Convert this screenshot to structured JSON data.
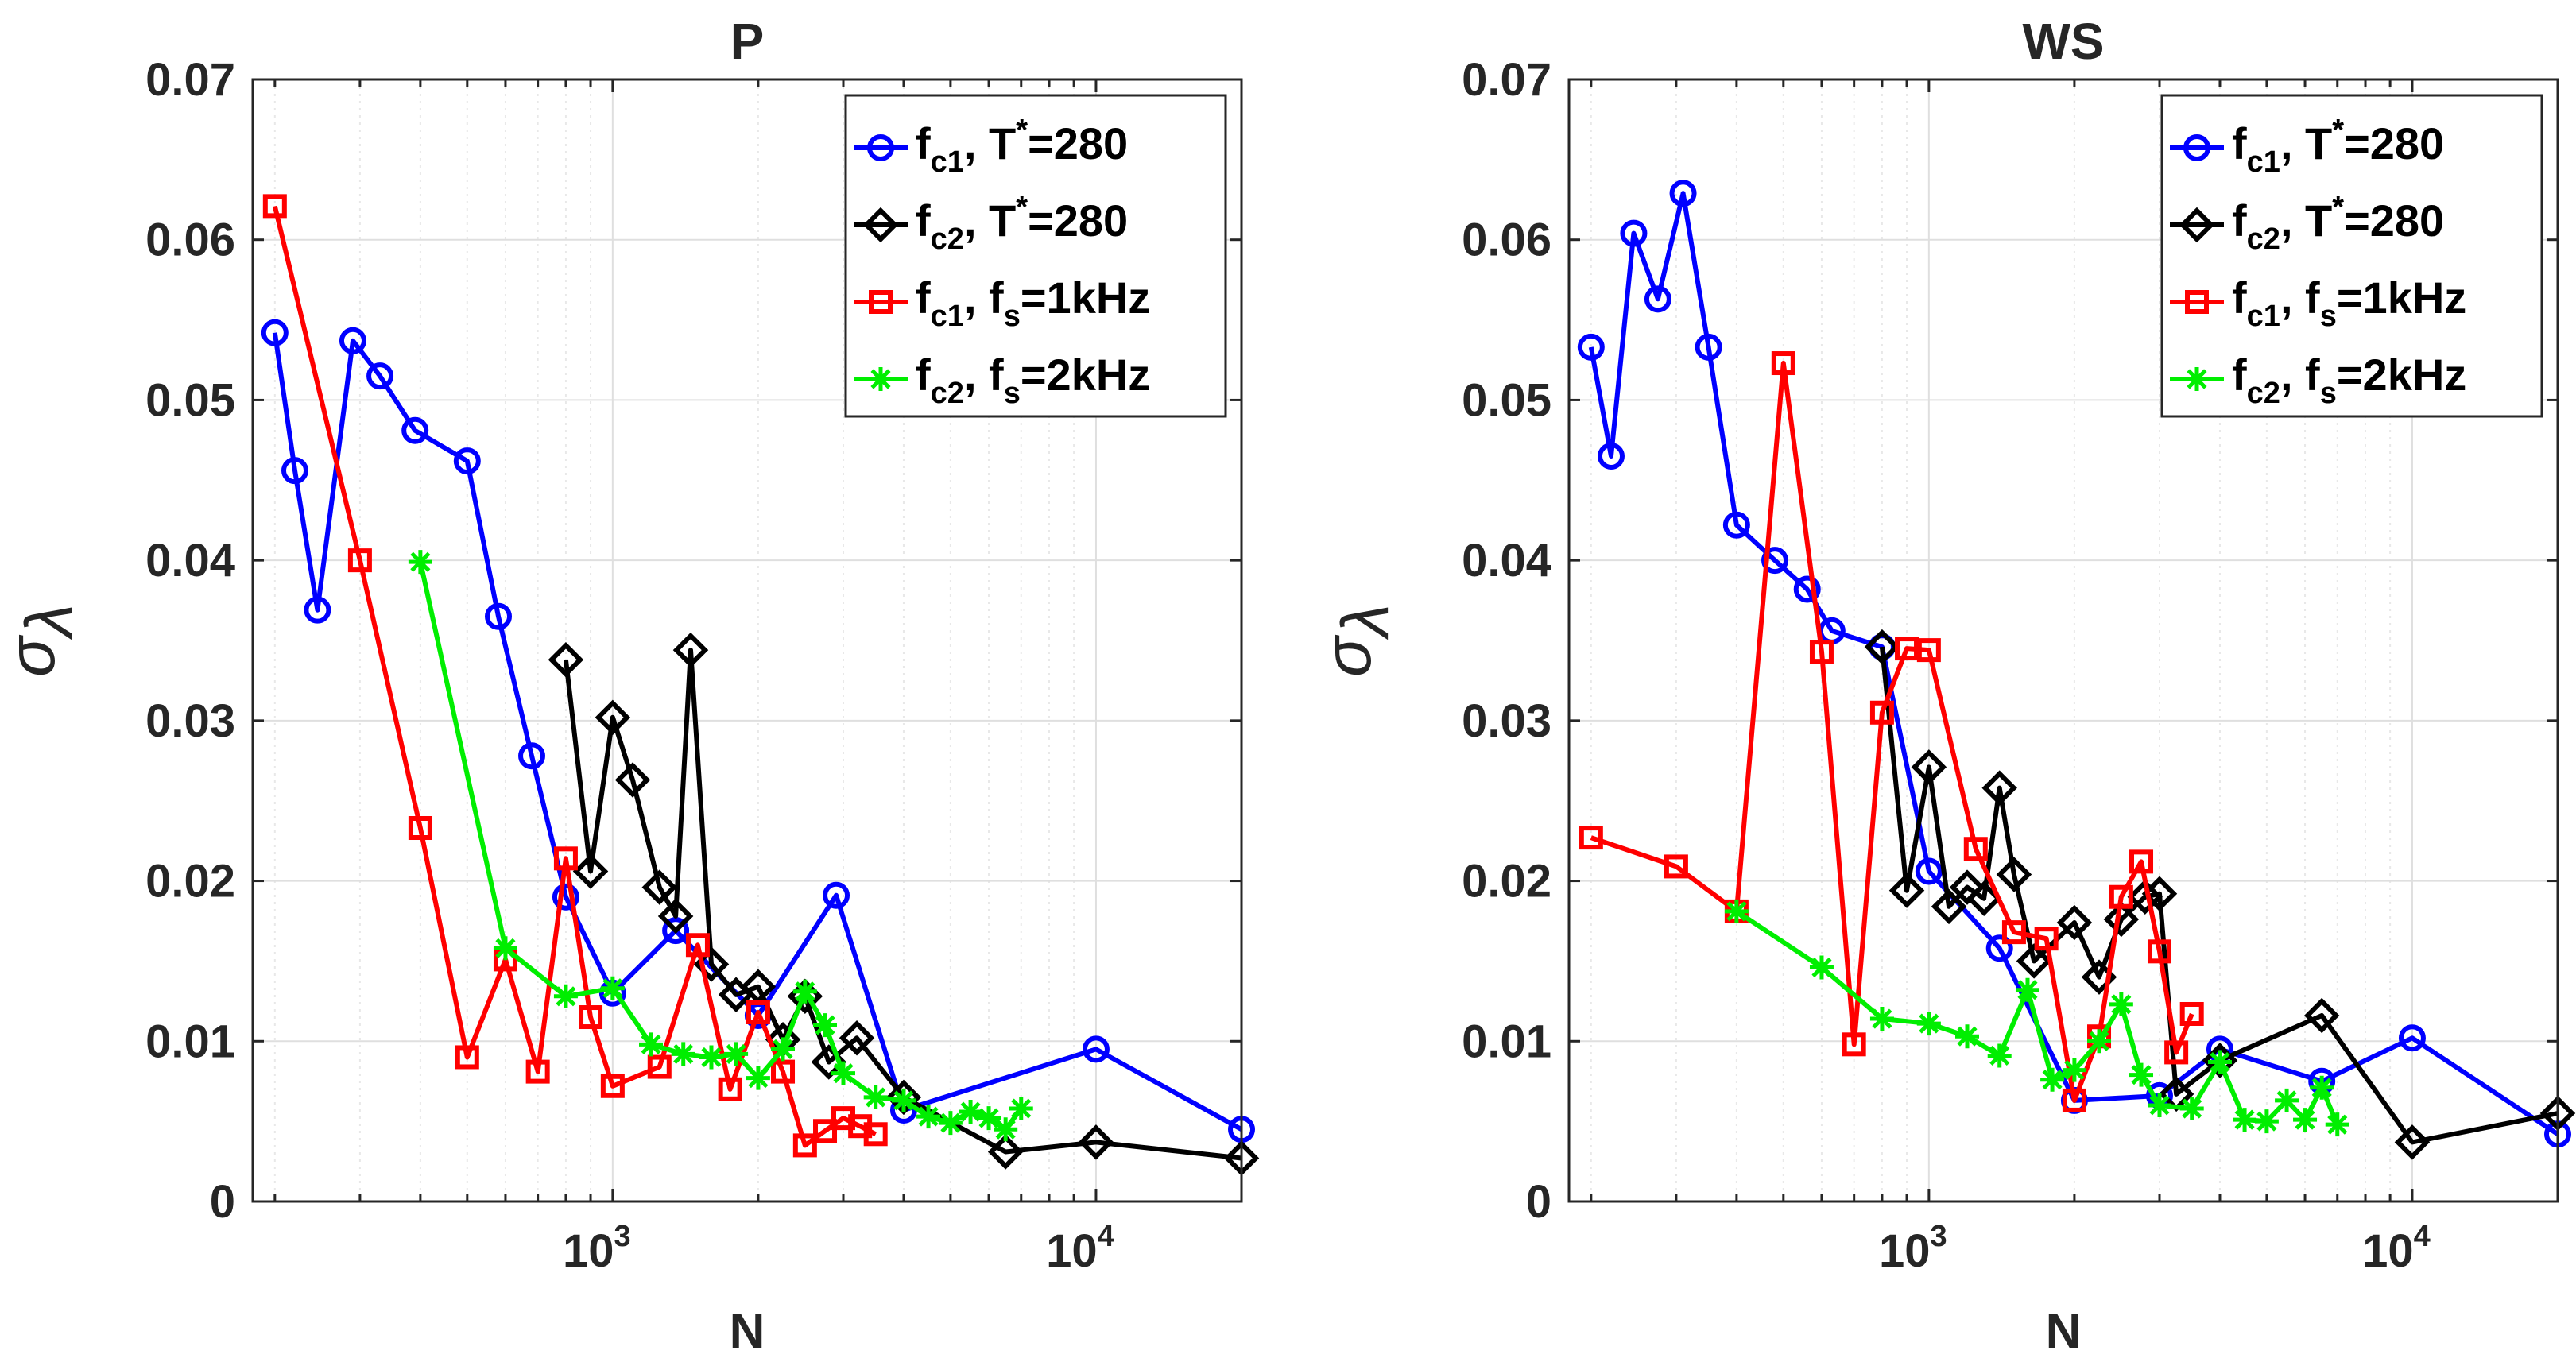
{
  "chart_data": [
    {
      "type": "line",
      "title": "P",
      "xlabel": "N",
      "ylabel": "σ",
      "ylabel_sub": "λ",
      "xscale": "log",
      "xlim": [
        180,
        20000
      ],
      "ylim": [
        0,
        0.07
      ],
      "yticks": [
        "0",
        "0.01",
        "0.02",
        "0.03",
        "0.04",
        "0.05",
        "0.06",
        "0.07"
      ],
      "xticks": [
        {
          "base": "10",
          "exp": "3"
        },
        {
          "base": "10",
          "exp": "4"
        }
      ],
      "grid": true,
      "legend_position": "top-right",
      "series": [
        {
          "name": "f_c1, T*=280",
          "legend": {
            "main": "f",
            "sub": "c1",
            "rest": ", T",
            "sup": "*",
            "tail": "=280"
          },
          "color": "#0000ff",
          "marker": "circle",
          "x": [
            200,
            220,
            245,
            290,
            330,
            390,
            500,
            580,
            680,
            800,
            1000,
            1350,
            2000,
            2900,
            4000,
            10000,
            20000
          ],
          "y": [
            0.0542,
            0.0456,
            0.0369,
            0.0537,
            0.0515,
            0.0481,
            0.0462,
            0.0365,
            0.0278,
            0.019,
            0.013,
            0.0169,
            0.0116,
            0.0191,
            0.0057,
            0.0095,
            0.0045
          ]
        },
        {
          "name": "f_c2, T*=280",
          "legend": {
            "main": "f",
            "sub": "c2",
            "rest": ", T",
            "sup": "*",
            "tail": "=280"
          },
          "color": "#000000",
          "marker": "diamond",
          "x": [
            800,
            900,
            1000,
            1100,
            1250,
            1350,
            1450,
            1600,
            1800,
            2000,
            2250,
            2500,
            2800,
            3200,
            4000,
            6500,
            10000,
            20000
          ],
          "y": [
            0.0338,
            0.0206,
            0.0302,
            0.0263,
            0.0196,
            0.0178,
            0.0344,
            0.0148,
            0.0129,
            0.0134,
            0.0101,
            0.0128,
            0.0087,
            0.0102,
            0.0065,
            0.0031,
            0.0037,
            0.0027
          ]
        },
        {
          "name": "f_c1, f_s=1kHz",
          "legend": {
            "main": "f",
            "sub": "c1",
            "rest": ", f",
            "sub2": "s",
            "tail": "=1kHz"
          },
          "color": "#ff0000",
          "marker": "square",
          "x": [
            200,
            300,
            400,
            500,
            600,
            700,
            800,
            900,
            1000,
            1250,
            1500,
            1750,
            2000,
            2250,
            2500,
            2750,
            3000,
            3250,
            3500
          ],
          "y": [
            0.0621,
            0.04,
            0.0233,
            0.009,
            0.0151,
            0.0081,
            0.0214,
            0.0115,
            0.0072,
            0.0084,
            0.016,
            0.007,
            0.0118,
            0.0081,
            0.0035,
            0.0044,
            0.0052,
            0.0047,
            0.0042
          ]
        },
        {
          "name": "f_c2, f_s=2kHz",
          "legend": {
            "main": "f",
            "sub": "c2",
            "rest": ", f",
            "sub2": "s",
            "tail": "=2kHz"
          },
          "color": "#00ee00",
          "marker": "asterisk",
          "x": [
            400,
            600,
            800,
            1000,
            1200,
            1400,
            1600,
            1800,
            2000,
            2250,
            2500,
            2750,
            3000,
            3500,
            4000,
            4500,
            5000,
            5500,
            6000,
            6500,
            7000
          ],
          "y": [
            0.0399,
            0.0158,
            0.0128,
            0.0133,
            0.0098,
            0.0092,
            0.009,
            0.0092,
            0.0077,
            0.0095,
            0.0131,
            0.011,
            0.008,
            0.0065,
            0.0063,
            0.0053,
            0.0049,
            0.0056,
            0.0052,
            0.0045,
            0.0058
          ]
        }
      ]
    },
    {
      "type": "line",
      "title": "WS",
      "xlabel": "N",
      "ylabel": "σ",
      "ylabel_sub": "λ",
      "xscale": "log",
      "xlim": [
        180,
        20000
      ],
      "ylim": [
        0,
        0.07
      ],
      "yticks": [
        "0",
        "0.01",
        "0.02",
        "0.03",
        "0.04",
        "0.05",
        "0.06",
        "0.07"
      ],
      "xticks": [
        {
          "base": "10",
          "exp": "3"
        },
        {
          "base": "10",
          "exp": "4"
        }
      ],
      "grid": true,
      "legend_position": "top-right",
      "series": [
        {
          "name": "f_c1, T*=280",
          "legend": {
            "main": "f",
            "sub": "c1",
            "rest": ", T",
            "sup": "*",
            "tail": "=280"
          },
          "color": "#0000ff",
          "marker": "circle",
          "x": [
            200,
            220,
            245,
            275,
            310,
            350,
            400,
            480,
            560,
            630,
            800,
            1000,
            1400,
            2000,
            3000,
            4000,
            6500,
            10000,
            20000
          ],
          "y": [
            0.0533,
            0.0465,
            0.0604,
            0.0563,
            0.0629,
            0.0533,
            0.0422,
            0.04,
            0.0382,
            0.0356,
            0.0346,
            0.0206,
            0.0158,
            0.0063,
            0.0066,
            0.0095,
            0.0075,
            0.0102,
            0.0042
          ]
        },
        {
          "name": "f_c2, T*=280",
          "legend": {
            "main": "f",
            "sub": "c2",
            "rest": ", T",
            "sup": "*",
            "tail": "=280"
          },
          "color": "#000000",
          "marker": "diamond",
          "x": [
            800,
            900,
            1000,
            1100,
            1200,
            1300,
            1400,
            1500,
            1650,
            2000,
            2250,
            2500,
            2800,
            3000,
            3250,
            4000,
            6500,
            10000,
            20000
          ],
          "y": [
            0.0346,
            0.0194,
            0.0271,
            0.0184,
            0.0196,
            0.0189,
            0.0258,
            0.0204,
            0.015,
            0.0174,
            0.014,
            0.0176,
            0.019,
            0.0192,
            0.0067,
            0.0088,
            0.0116,
            0.0037,
            0.0055
          ]
        },
        {
          "name": "f_c1, f_s=1kHz",
          "legend": {
            "main": "f",
            "sub": "c1",
            "rest": ", f",
            "sub2": "s",
            "tail": "=1kHz"
          },
          "color": "#ff0000",
          "marker": "square",
          "x": [
            200,
            300,
            400,
            500,
            600,
            700,
            800,
            900,
            1000,
            1250,
            1500,
            1750,
            2000,
            2250,
            2500,
            2750,
            3000,
            3250,
            3500
          ],
          "y": [
            0.0227,
            0.0209,
            0.0181,
            0.0523,
            0.0343,
            0.0098,
            0.0305,
            0.0345,
            0.0344,
            0.022,
            0.0168,
            0.0164,
            0.0063,
            0.0103,
            0.019,
            0.0212,
            0.0156,
            0.0093,
            0.0117
          ]
        },
        {
          "name": "f_c2, f_s=2kHz",
          "legend": {
            "main": "f",
            "sub": "c2",
            "rest": ", f",
            "sub2": "s",
            "tail": "=2kHz"
          },
          "color": "#00ee00",
          "marker": "asterisk",
          "x": [
            400,
            600,
            800,
            1000,
            1200,
            1400,
            1600,
            1800,
            2000,
            2250,
            2500,
            2750,
            3000,
            3500,
            4000,
            4500,
            5000,
            5500,
            6000,
            6500,
            7000
          ],
          "y": [
            0.0181,
            0.0146,
            0.0114,
            0.0111,
            0.0103,
            0.0091,
            0.0132,
            0.0076,
            0.0082,
            0.01,
            0.0123,
            0.0079,
            0.006,
            0.0058,
            0.0087,
            0.0051,
            0.005,
            0.0063,
            0.0051,
            0.0071,
            0.0048
          ]
        }
      ]
    }
  ]
}
